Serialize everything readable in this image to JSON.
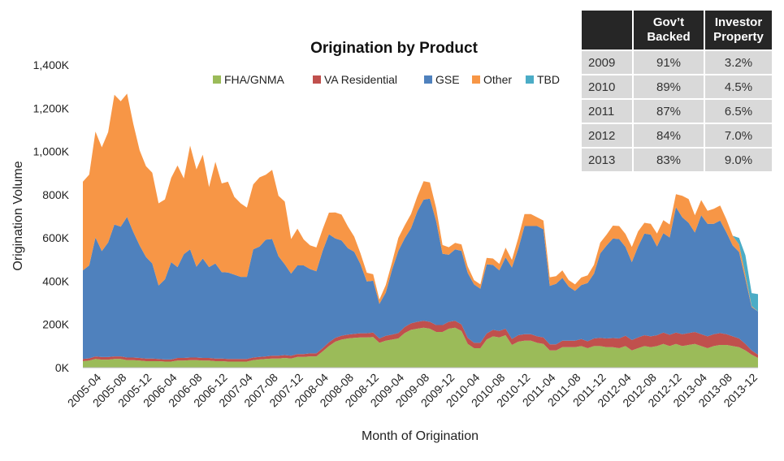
{
  "chart_data": {
    "type": "area",
    "stacked": true,
    "title": "Origination by Product",
    "xlabel": "Month of Origination",
    "ylabel": "Origination Volume",
    "ylim": [
      0,
      1400
    ],
    "y_ticks": [
      0,
      200,
      400,
      600,
      800,
      1000,
      1200,
      1400
    ],
    "y_tick_labels": [
      "0K",
      "200K",
      "400K",
      "600K",
      "800K",
      "1,000K",
      "1,200K",
      "1,400K"
    ],
    "x_tick_labels": [
      "2005-04",
      "2005-08",
      "2005-12",
      "2006-04",
      "2006-08",
      "2006-12",
      "2007-04",
      "2007-08",
      "2007-12",
      "2008-04",
      "2008-08",
      "2008-12",
      "2009-04",
      "2009-08",
      "2009-12",
      "2010-04",
      "2010-08",
      "2010-12",
      "2011-04",
      "2011-08",
      "2011-12",
      "2012-04",
      "2012-08",
      "2012-12",
      "2013-04",
      "2013-08",
      "2013-12"
    ],
    "legend_position": "top",
    "x": [
      "2005-01",
      "2005-02",
      "2005-03",
      "2005-04",
      "2005-05",
      "2005-06",
      "2005-07",
      "2005-08",
      "2005-09",
      "2005-10",
      "2005-11",
      "2005-12",
      "2006-01",
      "2006-02",
      "2006-03",
      "2006-04",
      "2006-05",
      "2006-06",
      "2006-07",
      "2006-08",
      "2006-09",
      "2006-10",
      "2006-11",
      "2006-12",
      "2007-01",
      "2007-02",
      "2007-03",
      "2007-04",
      "2007-05",
      "2007-06",
      "2007-07",
      "2007-08",
      "2007-09",
      "2007-10",
      "2007-11",
      "2007-12",
      "2008-01",
      "2008-02",
      "2008-03",
      "2008-04",
      "2008-05",
      "2008-06",
      "2008-07",
      "2008-08",
      "2008-09",
      "2008-10",
      "2008-11",
      "2008-12",
      "2009-01",
      "2009-02",
      "2009-03",
      "2009-04",
      "2009-05",
      "2009-06",
      "2009-07",
      "2009-08",
      "2009-09",
      "2009-10",
      "2009-11",
      "2009-12",
      "2010-01",
      "2010-02",
      "2010-03",
      "2010-04",
      "2010-05",
      "2010-06",
      "2010-07",
      "2010-08",
      "2010-09",
      "2010-10",
      "2010-11",
      "2010-12",
      "2011-01",
      "2011-02",
      "2011-03",
      "2011-04",
      "2011-05",
      "2011-06",
      "2011-07",
      "2011-08",
      "2011-09",
      "2011-10",
      "2011-11",
      "2011-12",
      "2012-01",
      "2012-02",
      "2012-03",
      "2012-04",
      "2012-05",
      "2012-06",
      "2012-07",
      "2012-08",
      "2012-09",
      "2012-10",
      "2012-11",
      "2012-12",
      "2013-01",
      "2013-02",
      "2013-03",
      "2013-04",
      "2013-05",
      "2013-06",
      "2013-07",
      "2013-08",
      "2013-09",
      "2013-10",
      "2013-11",
      "2013-12"
    ],
    "series": [
      {
        "name": "FHA/GNMA",
        "color": "#9bbb59",
        "values": [
          30,
          33,
          40,
          37,
          37,
          40,
          40,
          35,
          35,
          33,
          30,
          30,
          30,
          28,
          28,
          33,
          33,
          35,
          35,
          33,
          33,
          30,
          30,
          28,
          28,
          28,
          28,
          35,
          38,
          40,
          42,
          42,
          45,
          42,
          50,
          50,
          52,
          52,
          75,
          100,
          120,
          130,
          135,
          138,
          140,
          140,
          142,
          115,
          125,
          130,
          135,
          160,
          175,
          180,
          185,
          180,
          165,
          165,
          180,
          185,
          170,
          110,
          90,
          90,
          130,
          145,
          140,
          150,
          105,
          120,
          125,
          125,
          115,
          110,
          80,
          80,
          95,
          95,
          95,
          100,
          90,
          100,
          100,
          95,
          95,
          90,
          100,
          80,
          90,
          100,
          95,
          100,
          110,
          100,
          110,
          100,
          105,
          110,
          100,
          90,
          100,
          105,
          105,
          100,
          95,
          80,
          60,
          45
        ]
      },
      {
        "name": "VA Residential",
        "color": "#c0504d",
        "values": [
          10,
          10,
          12,
          12,
          12,
          12,
          12,
          12,
          12,
          12,
          12,
          12,
          10,
          10,
          10,
          12,
          12,
          12,
          12,
          12,
          12,
          12,
          12,
          12,
          12,
          12,
          12,
          12,
          12,
          12,
          13,
          13,
          13,
          13,
          13,
          13,
          14,
          14,
          15,
          17,
          18,
          18,
          18,
          18,
          19,
          19,
          20,
          20,
          22,
          23,
          25,
          28,
          30,
          32,
          32,
          32,
          32,
          32,
          32,
          32,
          30,
          28,
          25,
          25,
          28,
          30,
          30,
          30,
          28,
          30,
          30,
          30,
          30,
          30,
          28,
          28,
          30,
          30,
          30,
          32,
          32,
          35,
          38,
          40,
          42,
          45,
          48,
          48,
          50,
          50,
          50,
          50,
          52,
          52,
          52,
          55,
          55,
          55,
          55,
          55,
          55,
          55,
          50,
          45,
          40,
          30,
          20,
          15
        ]
      },
      {
        "name": "GSE",
        "color": "#4f81bd",
        "values": [
          410,
          430,
          550,
          490,
          530,
          610,
          600,
          650,
          580,
          520,
          470,
          440,
          340,
          370,
          450,
          420,
          480,
          500,
          420,
          460,
          420,
          440,
          400,
          400,
          390,
          380,
          380,
          500,
          510,
          540,
          540,
          460,
          420,
          380,
          410,
          410,
          390,
          380,
          450,
          500,
          460,
          440,
          400,
          380,
          320,
          240,
          240,
          160,
          200,
          300,
          380,
          410,
          440,
          510,
          560,
          570,
          480,
          330,
          310,
          330,
          340,
          300,
          270,
          250,
          320,
          300,
          280,
          330,
          330,
          400,
          500,
          500,
          510,
          500,
          270,
          280,
          290,
          250,
          230,
          250,
          270,
          300,
          390,
          430,
          460,
          460,
          410,
          360,
          420,
          470,
          470,
          410,
          460,
          450,
          580,
          540,
          510,
          460,
          550,
          520,
          510,
          520,
          470,
          420,
          400,
          300,
          200,
          200
        ]
      },
      {
        "name": "Other",
        "color": "#f79646",
        "values": [
          410,
          420,
          490,
          480,
          510,
          600,
          580,
          570,
          500,
          440,
          420,
          420,
          380,
          370,
          390,
          470,
          350,
          480,
          450,
          480,
          370,
          470,
          410,
          420,
          360,
          340,
          320,
          300,
          320,
          300,
          320,
          280,
          290,
          160,
          170,
          120,
          110,
          110,
          100,
          100,
          120,
          120,
          100,
          70,
          50,
          40,
          30,
          20,
          35,
          35,
          60,
          60,
          65,
          70,
          85,
          75,
          60,
          40,
          35,
          30,
          30,
          30,
          20,
          20,
          30,
          30,
          30,
          45,
          35,
          50,
          55,
          55,
          40,
          40,
          40,
          35,
          35,
          30,
          30,
          35,
          35,
          40,
          50,
          50,
          60,
          60,
          60,
          70,
          70,
          50,
          50,
          60,
          60,
          60,
          60,
          100,
          110,
          80,
          70,
          60,
          70,
          70,
          60,
          45,
          35,
          20,
          5,
          0
        ]
      },
      {
        "name": "TBD",
        "color": "#4bacc6",
        "values": [
          0,
          0,
          0,
          0,
          0,
          0,
          0,
          0,
          0,
          0,
          0,
          0,
          0,
          0,
          0,
          0,
          0,
          0,
          0,
          0,
          0,
          0,
          0,
          0,
          0,
          0,
          0,
          0,
          0,
          0,
          0,
          0,
          0,
          0,
          0,
          0,
          0,
          0,
          0,
          0,
          0,
          0,
          0,
          0,
          0,
          0,
          0,
          0,
          0,
          0,
          0,
          0,
          0,
          0,
          0,
          0,
          0,
          0,
          0,
          0,
          0,
          0,
          0,
          0,
          0,
          0,
          0,
          0,
          0,
          0,
          0,
          0,
          0,
          0,
          0,
          0,
          0,
          0,
          0,
          0,
          0,
          0,
          0,
          0,
          0,
          0,
          0,
          0,
          0,
          0,
          0,
          0,
          0,
          0,
          0,
          0,
          0,
          0,
          0,
          0,
          0,
          0,
          0,
          0,
          30,
          90,
          60,
          80
        ]
      }
    ]
  },
  "table": {
    "headers": [
      "",
      "Gov’t Backed",
      "Investor Property"
    ],
    "rows": [
      {
        "year": "2009",
        "gov": "91%",
        "investor": "3.2%"
      },
      {
        "year": "2010",
        "gov": "89%",
        "investor": "4.5%"
      },
      {
        "year": "2011",
        "gov": "87%",
        "investor": "6.5%"
      },
      {
        "year": "2012",
        "gov": "84%",
        "investor": "7.0%"
      },
      {
        "year": "2013",
        "gov": "83%",
        "investor": "9.0%"
      }
    ]
  }
}
